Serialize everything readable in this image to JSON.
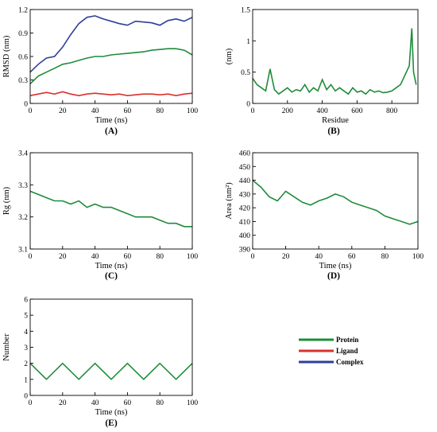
{
  "legend": {
    "items": [
      {
        "label": "Protein",
        "color": "#1f8c3a"
      },
      {
        "label": "Ligand",
        "color": "#d9312b"
      },
      {
        "label": "Complex",
        "color": "#2d3e9a"
      }
    ]
  },
  "chart_data": [
    {
      "panel": "(A)",
      "type": "line",
      "xlabel": "Time (ns)",
      "ylabel": "RMSD (nm)",
      "xlim": [
        0,
        100
      ],
      "ylim": [
        0,
        1.2
      ],
      "xticks": [
        0,
        20,
        40,
        60,
        80,
        100
      ],
      "yticks": [
        0,
        0.3,
        0.6,
        0.9,
        1.2
      ],
      "series": [
        {
          "name": "Complex",
          "color": "#2d3e9a",
          "x": [
            0,
            5,
            10,
            15,
            20,
            25,
            30,
            35,
            40,
            45,
            50,
            55,
            60,
            65,
            70,
            75,
            80,
            85,
            90,
            95,
            100
          ],
          "y": [
            0.4,
            0.5,
            0.58,
            0.6,
            0.72,
            0.88,
            1.02,
            1.1,
            1.12,
            1.08,
            1.05,
            1.02,
            1.0,
            1.05,
            1.04,
            1.03,
            1.0,
            1.06,
            1.08,
            1.05,
            1.1
          ]
        },
        {
          "name": "Protein",
          "color": "#1f8c3a",
          "x": [
            0,
            5,
            10,
            15,
            20,
            25,
            30,
            35,
            40,
            45,
            50,
            55,
            60,
            65,
            70,
            75,
            80,
            85,
            90,
            95,
            100
          ],
          "y": [
            0.25,
            0.35,
            0.4,
            0.45,
            0.5,
            0.52,
            0.55,
            0.58,
            0.6,
            0.6,
            0.62,
            0.63,
            0.64,
            0.65,
            0.66,
            0.68,
            0.69,
            0.7,
            0.7,
            0.68,
            0.62
          ]
        },
        {
          "name": "Ligand",
          "color": "#d9312b",
          "x": [
            0,
            5,
            10,
            15,
            20,
            25,
            30,
            35,
            40,
            45,
            50,
            55,
            60,
            65,
            70,
            75,
            80,
            85,
            90,
            95,
            100
          ],
          "y": [
            0.1,
            0.12,
            0.14,
            0.12,
            0.15,
            0.12,
            0.1,
            0.12,
            0.13,
            0.12,
            0.11,
            0.12,
            0.1,
            0.11,
            0.12,
            0.12,
            0.11,
            0.12,
            0.1,
            0.12,
            0.13
          ]
        }
      ]
    },
    {
      "panel": "(B)",
      "type": "line",
      "xlabel": "Residue",
      "ylabel": "(nm)",
      "xlim": [
        0,
        950
      ],
      "ylim": [
        0,
        1.5
      ],
      "xticks": [
        0,
        200,
        400,
        600,
        800
      ],
      "yticks": [
        0,
        0.5,
        1,
        1.5
      ],
      "series": [
        {
          "color": "#1f8c3a",
          "x": [
            0,
            25,
            50,
            75,
            100,
            125,
            150,
            175,
            200,
            225,
            250,
            275,
            300,
            325,
            350,
            375,
            400,
            425,
            450,
            475,
            500,
            525,
            550,
            575,
            600,
            625,
            650,
            675,
            700,
            725,
            750,
            775,
            800,
            825,
            850,
            875,
            900,
            915,
            925,
            940
          ],
          "y": [
            0.4,
            0.3,
            0.25,
            0.2,
            0.55,
            0.22,
            0.15,
            0.2,
            0.25,
            0.18,
            0.22,
            0.2,
            0.3,
            0.18,
            0.25,
            0.2,
            0.38,
            0.22,
            0.3,
            0.2,
            0.25,
            0.2,
            0.15,
            0.25,
            0.18,
            0.2,
            0.15,
            0.22,
            0.18,
            0.2,
            0.17,
            0.18,
            0.2,
            0.25,
            0.3,
            0.45,
            0.6,
            1.2,
            0.5,
            0.3
          ]
        }
      ]
    },
    {
      "panel": "(C)",
      "type": "line",
      "xlabel": "Time (ns)",
      "ylabel": "Rg (nm)",
      "xlim": [
        0,
        100
      ],
      "ylim": [
        3.1,
        3.4
      ],
      "xticks": [
        0,
        20,
        40,
        60,
        80,
        100
      ],
      "yticks": [
        3.1,
        3.2,
        3.3,
        3.4
      ],
      "series": [
        {
          "color": "#1f8c3a",
          "x": [
            0,
            5,
            10,
            15,
            20,
            25,
            30,
            35,
            40,
            45,
            50,
            55,
            60,
            65,
            70,
            75,
            80,
            85,
            90,
            95,
            100
          ],
          "y": [
            3.28,
            3.27,
            3.26,
            3.25,
            3.25,
            3.24,
            3.25,
            3.23,
            3.24,
            3.23,
            3.23,
            3.22,
            3.21,
            3.2,
            3.2,
            3.2,
            3.19,
            3.18,
            3.18,
            3.17,
            3.17
          ]
        }
      ]
    },
    {
      "panel": "(D)",
      "type": "line",
      "xlabel": "Time (ns)",
      "ylabel": "Area (nm²)",
      "xlim": [
        0,
        100
      ],
      "ylim": [
        390,
        460
      ],
      "xticks": [
        0,
        20,
        40,
        60,
        80,
        100
      ],
      "yticks": [
        390,
        400,
        410,
        420,
        430,
        440,
        450,
        460
      ],
      "series": [
        {
          "color": "#1f8c3a",
          "x": [
            0,
            5,
            10,
            15,
            20,
            25,
            30,
            35,
            40,
            45,
            50,
            55,
            60,
            65,
            70,
            75,
            80,
            85,
            90,
            95,
            100
          ],
          "y": [
            440,
            435,
            428,
            425,
            432,
            428,
            424,
            422,
            425,
            427,
            430,
            428,
            424,
            422,
            420,
            418,
            414,
            412,
            410,
            408,
            410
          ]
        }
      ]
    },
    {
      "panel": "(E)",
      "type": "line",
      "xlabel": "Time (ns)",
      "ylabel": "Number",
      "xlim": [
        0,
        100
      ],
      "ylim": [
        0,
        6
      ],
      "xticks": [
        0,
        20,
        40,
        60,
        80,
        100
      ],
      "yticks": [
        0,
        1,
        2,
        3,
        4,
        5,
        6
      ],
      "series": [
        {
          "color": "#1f8c3a",
          "x": [
            0,
            10,
            20,
            30,
            40,
            50,
            60,
            70,
            80,
            90,
            100
          ],
          "y": [
            2,
            1,
            2,
            1,
            2,
            1,
            2,
            1,
            2,
            1,
            2
          ]
        }
      ]
    }
  ]
}
